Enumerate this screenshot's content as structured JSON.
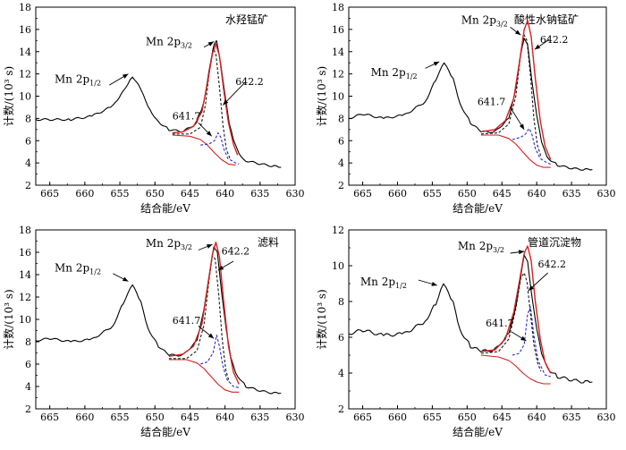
{
  "colors": {
    "raw": "#000000",
    "fit": "#d62020",
    "component_1": "#1a1a1a",
    "component_2": "#2a2ad0",
    "background": "#d62020"
  },
  "chart_data": [
    {
      "type": "line",
      "title": "水羟锰矿",
      "xlabel": "结合能/eV",
      "ylabel": "计数/(10³ s)",
      "xlim": [
        667,
        630
      ],
      "ylim": [
        2,
        18
      ],
      "x_ticks": [
        "665",
        "660",
        "655",
        "650",
        "645",
        "640",
        "635",
        "630"
      ],
      "y_ticks": [
        "2",
        "4",
        "6",
        "8",
        "10",
        "12",
        "14",
        "16",
        "18"
      ],
      "peak_labels": [
        "Mn 2p",
        "1/2",
        "Mn 2p",
        "3/2"
      ],
      "annotations": [
        "642.2",
        "641.7"
      ],
      "raw_curve": [
        [
          667,
          7.9
        ],
        [
          662,
          7.9
        ],
        [
          659,
          8.2
        ],
        [
          656,
          9.1
        ],
        [
          654.5,
          10.5
        ],
        [
          653.2,
          11.8
        ],
        [
          652,
          10.6
        ],
        [
          651,
          9.0
        ],
        [
          649.5,
          7.7
        ],
        [
          648,
          7.0
        ],
        [
          646,
          6.8
        ],
        [
          644,
          7.6
        ],
        [
          643,
          9.5
        ],
        [
          642.3,
          12.3
        ],
        [
          641.6,
          14.6
        ],
        [
          641.2,
          14.9
        ],
        [
          640.6,
          12.8
        ],
        [
          640,
          10.2
        ],
        [
          639.4,
          7.6
        ],
        [
          638.8,
          6.0
        ],
        [
          638,
          4.8
        ],
        [
          637,
          4.2
        ],
        [
          635,
          3.9
        ],
        [
          633,
          3.7
        ],
        [
          632,
          3.6
        ]
      ],
      "fit_curve": [
        [
          647.5,
          6.7
        ],
        [
          646,
          6.8
        ],
        [
          644.5,
          7.3
        ],
        [
          643.3,
          8.6
        ],
        [
          642.5,
          11.2
        ],
        [
          641.8,
          13.8
        ],
        [
          641.3,
          14.7
        ],
        [
          640.8,
          13.6
        ],
        [
          640.2,
          10.6
        ],
        [
          639.5,
          7.6
        ],
        [
          638.8,
          5.7
        ],
        [
          638.2,
          4.7
        ]
      ],
      "component_641_7": [
        [
          647.5,
          6.6
        ],
        [
          645,
          6.6
        ],
        [
          643.5,
          7.2
        ],
        [
          642.8,
          9.2
        ],
        [
          642.2,
          12.4
        ],
        [
          641.7,
          14.3
        ],
        [
          641.3,
          13.8
        ],
        [
          640.8,
          10.8
        ],
        [
          640.3,
          7.4
        ],
        [
          639.8,
          5.2
        ],
        [
          639.3,
          4.4
        ]
      ],
      "component_642_2": [
        [
          643.5,
          5.6
        ],
        [
          642.3,
          5.7
        ],
        [
          641.5,
          6.0
        ],
        [
          641,
          6.7
        ],
        [
          640.6,
          6.3
        ],
        [
          640.2,
          5.3
        ],
        [
          639.6,
          4.4
        ],
        [
          638.5,
          4.0
        ],
        [
          638,
          3.9
        ]
      ],
      "background_curve": [
        [
          647.5,
          6.5
        ],
        [
          645,
          6.4
        ],
        [
          643.5,
          6.1
        ],
        [
          642.5,
          5.6
        ],
        [
          641.5,
          4.9
        ],
        [
          640.5,
          4.3
        ],
        [
          639.5,
          3.9
        ],
        [
          638.5,
          3.8
        ]
      ]
    },
    {
      "type": "line",
      "title": "酸性水钠锰矿",
      "xlabel": "结合能/eV",
      "ylabel": "计数/(10³ s)",
      "xlim": [
        667,
        630
      ],
      "ylim": [
        2,
        18
      ],
      "x_ticks": [
        "665",
        "660",
        "655",
        "650",
        "645",
        "640",
        "635",
        "630"
      ],
      "y_ticks": [
        "2",
        "4",
        "6",
        "8",
        "10",
        "12",
        "14",
        "16",
        "18"
      ],
      "peak_labels": [
        "Mn 2p",
        "1/2",
        "Mn 2p",
        "3/2"
      ],
      "annotations": [
        "642.2",
        "641.7"
      ],
      "raw_curve": [
        [
          667,
          8.0
        ],
        [
          665,
          8.4
        ],
        [
          662,
          8.0
        ],
        [
          659,
          8.3
        ],
        [
          656,
          9.5
        ],
        [
          654.5,
          11.5
        ],
        [
          653.3,
          13.0
        ],
        [
          652,
          11.5
        ],
        [
          651,
          9.3
        ],
        [
          649.5,
          7.6
        ],
        [
          648,
          6.8
        ],
        [
          646,
          6.8
        ],
        [
          644,
          8.0
        ],
        [
          643,
          10.8
        ],
        [
          642.3,
          13.8
        ],
        [
          641.8,
          15.1
        ],
        [
          641.3,
          14.6
        ],
        [
          640.7,
          11.5
        ],
        [
          640,
          8.3
        ],
        [
          639.3,
          5.8
        ],
        [
          638.5,
          4.5
        ],
        [
          637,
          3.8
        ],
        [
          635,
          3.5
        ],
        [
          633,
          3.4
        ],
        [
          632,
          3.4
        ]
      ],
      "fit_curve": [
        [
          648,
          6.8
        ],
        [
          646,
          7.0
        ],
        [
          644.5,
          7.8
        ],
        [
          643.3,
          9.8
        ],
        [
          642.5,
          13.0
        ],
        [
          641.8,
          16.0
        ],
        [
          641.3,
          16.8
        ],
        [
          640.8,
          15.4
        ],
        [
          640.2,
          11.6
        ],
        [
          639.5,
          7.8
        ],
        [
          638.8,
          5.5
        ],
        [
          638,
          4.3
        ]
      ],
      "component_641_7": [
        [
          648,
          6.6
        ],
        [
          645.5,
          6.7
        ],
        [
          644,
          7.5
        ],
        [
          643,
          10.0
        ],
        [
          642.3,
          13.8
        ],
        [
          641.8,
          15.5
        ],
        [
          641.4,
          15.0
        ],
        [
          640.9,
          11.8
        ],
        [
          640.4,
          8.0
        ],
        [
          639.9,
          5.6
        ],
        [
          639.4,
          4.6
        ]
      ],
      "component_642_2": [
        [
          643.5,
          6.1
        ],
        [
          642.3,
          6.3
        ],
        [
          641.6,
          6.6
        ],
        [
          641.1,
          7.1
        ],
        [
          640.7,
          6.6
        ],
        [
          640.2,
          5.3
        ],
        [
          639.5,
          4.4
        ],
        [
          638.5,
          4.0
        ],
        [
          638,
          3.9
        ]
      ],
      "background_curve": [
        [
          648,
          6.5
        ],
        [
          645.5,
          6.5
        ],
        [
          644,
          6.2
        ],
        [
          643,
          5.7
        ],
        [
          642,
          5.0
        ],
        [
          641,
          4.3
        ],
        [
          640,
          3.8
        ],
        [
          639,
          3.6
        ],
        [
          638,
          3.6
        ]
      ]
    },
    {
      "type": "line",
      "title": "滤料",
      "xlabel": "结合能/eV",
      "ylabel": "计数/(10³ s)",
      "xlim": [
        667,
        630
      ],
      "ylim": [
        2,
        18
      ],
      "x_ticks": [
        "665",
        "660",
        "655",
        "650",
        "645",
        "640",
        "635",
        "630"
      ],
      "y_ticks": [
        "2",
        "4",
        "6",
        "8",
        "10",
        "12",
        "14",
        "16",
        "18"
      ],
      "peak_labels": [
        "Mn 2p",
        "1/2",
        "Mn 2p",
        "3/2"
      ],
      "annotations": [
        "642.2",
        "641.7"
      ],
      "raw_curve": [
        [
          667,
          8.1
        ],
        [
          665,
          8.3
        ],
        [
          662,
          8.0
        ],
        [
          659,
          8.2
        ],
        [
          656,
          9.4
        ],
        [
          654.5,
          11.5
        ],
        [
          653.2,
          13.1
        ],
        [
          652,
          11.5
        ],
        [
          651,
          9.2
        ],
        [
          649.5,
          7.6
        ],
        [
          648,
          6.8
        ],
        [
          646,
          6.8
        ],
        [
          644,
          8.1
        ],
        [
          643,
          11.0
        ],
        [
          642.2,
          14.2
        ],
        [
          641.6,
          16.4
        ],
        [
          641.1,
          16.0
        ],
        [
          640.5,
          12.6
        ],
        [
          639.8,
          9.0
        ],
        [
          639.2,
          6.6
        ],
        [
          638.5,
          5.2
        ],
        [
          637,
          4.0
        ],
        [
          635,
          3.6
        ],
        [
          633,
          3.4
        ],
        [
          632,
          3.4
        ]
      ],
      "fit_curve": [
        [
          648,
          6.7
        ],
        [
          646,
          6.9
        ],
        [
          644.5,
          7.6
        ],
        [
          643.3,
          9.6
        ],
        [
          642.5,
          12.8
        ],
        [
          641.8,
          15.8
        ],
        [
          641.3,
          16.9
        ],
        [
          640.8,
          15.6
        ],
        [
          640.2,
          11.6
        ],
        [
          639.5,
          7.6
        ],
        [
          638.8,
          5.3
        ],
        [
          638,
          4.2
        ]
      ],
      "component_641_7": [
        [
          648,
          6.5
        ],
        [
          645.5,
          6.5
        ],
        [
          644,
          7.2
        ],
        [
          643,
          9.5
        ],
        [
          642.3,
          13.4
        ],
        [
          641.8,
          15.7
        ],
        [
          641.4,
          15.4
        ],
        [
          640.9,
          12.2
        ],
        [
          640.4,
          8.2
        ],
        [
          639.9,
          5.5
        ],
        [
          639.4,
          4.4
        ]
      ],
      "component_642_2": [
        [
          643.5,
          6.0
        ],
        [
          642.5,
          6.2
        ],
        [
          641.7,
          7.0
        ],
        [
          641.2,
          8.6
        ],
        [
          640.8,
          7.6
        ],
        [
          640.3,
          5.8
        ],
        [
          639.7,
          4.6
        ],
        [
          638.8,
          4.0
        ],
        [
          638,
          3.9
        ]
      ],
      "background_curve": [
        [
          648,
          6.4
        ],
        [
          645.5,
          6.4
        ],
        [
          644,
          6.1
        ],
        [
          643,
          5.6
        ],
        [
          642,
          4.9
        ],
        [
          641,
          4.2
        ],
        [
          640,
          3.7
        ],
        [
          639,
          3.5
        ],
        [
          638,
          3.5
        ]
      ]
    },
    {
      "type": "line",
      "title": "管道沉淀物",
      "xlabel": "结合能/eV",
      "ylabel": "计数/(10³ s)",
      "xlim": [
        667,
        630
      ],
      "ylim": [
        2,
        12
      ],
      "x_ticks": [
        "665",
        "660",
        "655",
        "650",
        "645",
        "640",
        "635",
        "630"
      ],
      "y_ticks": [
        "2",
        "4",
        "6",
        "8",
        "10",
        "12"
      ],
      "peak_labels": [
        "Mn 2p",
        "1/2",
        "Mn 2p",
        "3/2"
      ],
      "annotations": [
        "642.2",
        "641.7"
      ],
      "raw_curve": [
        [
          667,
          6.2
        ],
        [
          665,
          6.4
        ],
        [
          662,
          6.1
        ],
        [
          659,
          6.2
        ],
        [
          656,
          6.9
        ],
        [
          654.5,
          7.9
        ],
        [
          653.4,
          9.0
        ],
        [
          652,
          7.9
        ],
        [
          651,
          6.4
        ],
        [
          649.5,
          5.5
        ],
        [
          648,
          5.2
        ],
        [
          646,
          5.3
        ],
        [
          644,
          6.2
        ],
        [
          643,
          7.8
        ],
        [
          642.3,
          9.4
        ],
        [
          641.8,
          10.5
        ],
        [
          641.3,
          10.2
        ],
        [
          640.7,
          8.4
        ],
        [
          640,
          6.5
        ],
        [
          639.3,
          5.0
        ],
        [
          638.5,
          4.3
        ],
        [
          637,
          3.8
        ],
        [
          635,
          3.6
        ],
        [
          633,
          3.5
        ],
        [
          632,
          3.5
        ]
      ],
      "fit_curve": [
        [
          648,
          5.2
        ],
        [
          646,
          5.3
        ],
        [
          644.5,
          5.9
        ],
        [
          643.3,
          7.4
        ],
        [
          642.5,
          9.1
        ],
        [
          641.8,
          10.7
        ],
        [
          641.3,
          11.1
        ],
        [
          640.8,
          10.3
        ],
        [
          640.2,
          8.0
        ],
        [
          639.5,
          5.9
        ],
        [
          638.8,
          4.6
        ],
        [
          638,
          4.0
        ]
      ],
      "component_641_7": [
        [
          648,
          5.1
        ],
        [
          645.5,
          5.2
        ],
        [
          644,
          5.9
        ],
        [
          643,
          7.6
        ],
        [
          642.3,
          9.3
        ],
        [
          641.8,
          9.6
        ],
        [
          641.4,
          9.1
        ],
        [
          640.9,
          7.3
        ],
        [
          640.4,
          5.6
        ],
        [
          639.9,
          4.6
        ],
        [
          639.4,
          4.1
        ]
      ],
      "component_642_2": [
        [
          643.5,
          5.0
        ],
        [
          642.5,
          5.1
        ],
        [
          641.8,
          5.6
        ],
        [
          641.3,
          7.3
        ],
        [
          640.9,
          7.7
        ],
        [
          640.4,
          6.1
        ],
        [
          639.8,
          4.7
        ],
        [
          638.8,
          3.9
        ],
        [
          638,
          3.8
        ]
      ],
      "background_curve": [
        [
          648,
          5.0
        ],
        [
          645.5,
          4.9
        ],
        [
          644,
          4.7
        ],
        [
          643,
          4.4
        ],
        [
          642,
          4.0
        ],
        [
          641,
          3.7
        ],
        [
          640,
          3.5
        ],
        [
          639,
          3.4
        ],
        [
          638,
          3.4
        ]
      ]
    }
  ]
}
